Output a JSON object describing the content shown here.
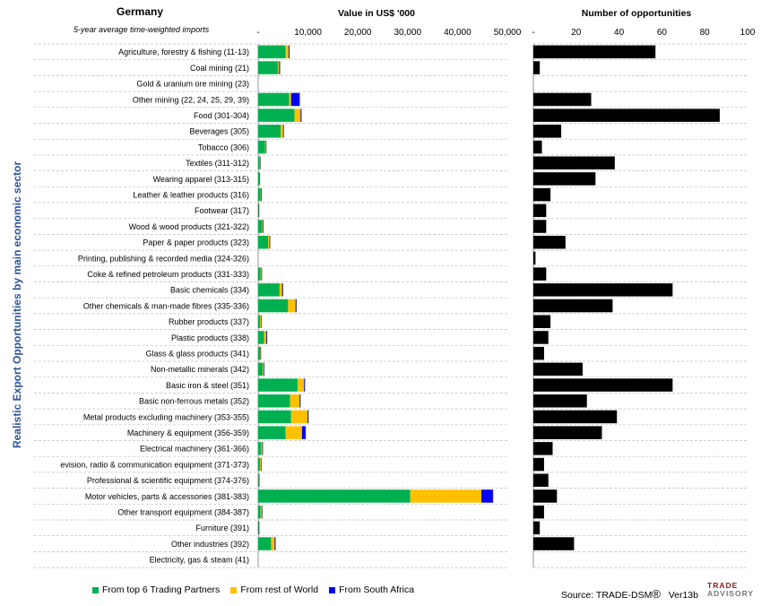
{
  "header": {
    "country": "Germany",
    "subtitle": "5-year average time-weighted imports",
    "value_title": "Value in US$ '000",
    "count_title": "Number of opportunities",
    "ylabel": "Realistic Export Opportunities by main economic sector"
  },
  "legend": {
    "items": [
      {
        "label": "From top 6 Trading Partners",
        "color": "#00b050"
      },
      {
        "label": "From rest of World",
        "color": "#ffc000"
      },
      {
        "label": "From South Africa",
        "color": "#0000ff"
      }
    ]
  },
  "source": {
    "label": "Source: TRADE-DSM",
    "mark": "®",
    "version": "Ver13b"
  },
  "logo": {
    "line1": "TRADE",
    "line2": "ADVISORY"
  },
  "chart_data": [
    {
      "type": "bar",
      "orientation": "horizontal",
      "stacked": true,
      "title": "Value in US$ '000",
      "xlim": [
        0,
        50000
      ],
      "xticks": [
        "-",
        "10,000",
        "20,000",
        "30,000",
        "40,000",
        "50,000"
      ],
      "categories": [
        "Agriculture, forestry & fishing (11-13)",
        "Coal mining (21)",
        "Gold & uranium ore mining (23)",
        "Other mining (22, 24, 25, 29, 39)",
        "Food (301-304)",
        "Beverages (305)",
        "Tobacco (306)",
        "Textiles (311-312)",
        "Wearing apparel (313-315)",
        "Leather & leather products (316)",
        "Footwear (317)",
        "Wood & wood products (321-322)",
        "Paper & paper products (323)",
        "Printing, publishing & recorded media (324-326)",
        "Coke & refined petroleum products (331-333)",
        "Basic chemicals (334)",
        "Other chemicals & man-made fibres (335-336)",
        "Rubber products (337)",
        "Plastic products (338)",
        "Glass & glass products (341)",
        "Non-metallic minerals (342)",
        "Basic iron & steel (351)",
        "Basic non-ferrous metals (352)",
        "Metal products excluding machinery (353-355)",
        "Machinery & equipment (356-359)",
        "Electrical machinery (361-366)",
        "evision, radio & communication equipment (371-373)",
        "Professional & scientific equipment (374-376)",
        "Motor vehicles, parts & accessories (381-383)",
        "Other transport equipment (384-387)",
        "Furniture (391)",
        "Other industries (392)",
        "Electricity, gas & steam (41)"
      ],
      "series": [
        {
          "name": "From top 6 Trading Partners",
          "color": "#00b050",
          "values": [
            5500,
            4000,
            0,
            6200,
            7300,
            4500,
            1400,
            300,
            200,
            500,
            100,
            800,
            2000,
            0,
            500,
            4300,
            6000,
            400,
            1200,
            400,
            900,
            7900,
            6400,
            6600,
            5500,
            600,
            400,
            100,
            30500,
            500,
            100,
            2600,
            0
          ]
        },
        {
          "name": "From rest of World",
          "color": "#ffc000",
          "values": [
            600,
            200,
            0,
            400,
            1200,
            500,
            150,
            80,
            80,
            100,
            30,
            150,
            250,
            0,
            150,
            500,
            1500,
            150,
            400,
            80,
            200,
            1300,
            1900,
            3300,
            3300,
            200,
            150,
            50,
            14300,
            200,
            50,
            700,
            0
          ]
        },
        {
          "name": "From South Africa",
          "color": "#0000ff",
          "values": [
            150,
            150,
            0,
            1700,
            150,
            100,
            50,
            30,
            30,
            60,
            20,
            60,
            100,
            0,
            60,
            150,
            150,
            60,
            150,
            40,
            80,
            150,
            150,
            150,
            700,
            100,
            60,
            40,
            2300,
            80,
            30,
            150,
            0
          ]
        }
      ]
    },
    {
      "type": "bar",
      "orientation": "horizontal",
      "title": "Number of opportunities",
      "xlim": [
        0,
        100
      ],
      "xticks": [
        "-",
        "20",
        "40",
        "60",
        "80",
        "100"
      ],
      "values": [
        57,
        3,
        0,
        27,
        87,
        13,
        4,
        38,
        29,
        8,
        6,
        6,
        15,
        1,
        6,
        65,
        37,
        8,
        7,
        5,
        23,
        65,
        25,
        39,
        32,
        9,
        5,
        7,
        11,
        5,
        3,
        19,
        0
      ],
      "color": "#000000"
    }
  ]
}
